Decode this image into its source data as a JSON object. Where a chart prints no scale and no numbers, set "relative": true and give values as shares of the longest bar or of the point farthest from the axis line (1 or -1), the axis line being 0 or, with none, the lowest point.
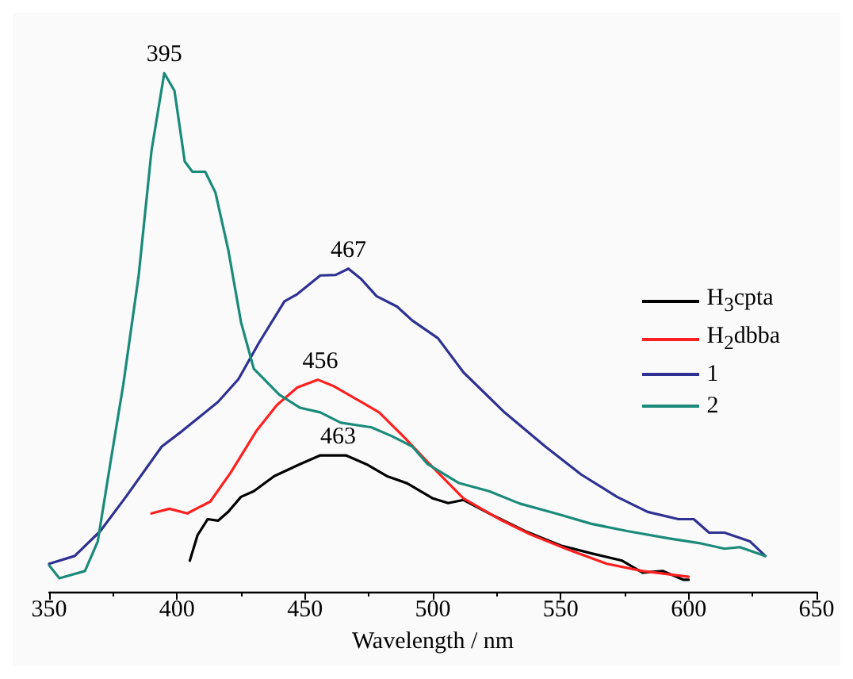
{
  "chart_data": {
    "type": "line",
    "xlabel": "Wavelength / nm",
    "relative": true,
    "xlim": [
      350,
      650
    ],
    "xticks": [
      350,
      400,
      450,
      500,
      550,
      600,
      650
    ],
    "legend": "right",
    "grid": false,
    "tick_labels": "x",
    "marker": "none",
    "line_style": "solid",
    "annotations": [
      {
        "text": "395",
        "x": 395,
        "y": 1.0
      },
      {
        "text": "467",
        "x": 467,
        "y": 0.623
      },
      {
        "text": "456",
        "x": 456,
        "y": 0.409
      },
      {
        "text": "463",
        "x": 463,
        "y": 0.263
      }
    ],
    "series": [
      {
        "name": "H$_{3}$cpta",
        "color": "#000000",
        "x": [
          405,
          408,
          412,
          416,
          420,
          425,
          430,
          438,
          448,
          456,
          466,
          474,
          482,
          490,
          500,
          506,
          512,
          524,
          536,
          550,
          562,
          574,
          582,
          590,
          598,
          600
        ],
        "values": [
          0.06,
          0.109,
          0.14,
          0.137,
          0.154,
          0.183,
          0.194,
          0.223,
          0.246,
          0.263,
          0.263,
          0.246,
          0.223,
          0.209,
          0.18,
          0.171,
          0.177,
          0.146,
          0.117,
          0.089,
          0.074,
          0.06,
          0.037,
          0.04,
          0.023,
          0.023
        ]
      },
      {
        "name": "H$_{2}$dbba",
        "color": "#ff2020",
        "x": [
          390,
          397,
          404,
          413,
          421,
          431,
          439,
          447,
          455,
          461,
          471,
          479,
          489,
          498,
          512,
          526,
          538,
          552,
          568,
          582,
          600
        ],
        "values": [
          0.151,
          0.16,
          0.151,
          0.174,
          0.23,
          0.31,
          0.36,
          0.394,
          0.409,
          0.397,
          0.369,
          0.346,
          0.297,
          0.25,
          0.18,
          0.14,
          0.111,
          0.083,
          0.054,
          0.04,
          0.029
        ]
      },
      {
        "name": "1",
        "color": "#2e3192",
        "x": [
          350,
          360,
          370,
          380,
          394,
          402,
          416,
          424,
          432,
          442,
          447,
          456,
          462,
          467,
          472,
          478,
          486,
          492,
          502,
          512,
          528,
          544,
          558,
          572,
          584,
          596,
          602,
          608,
          614,
          624,
          630
        ],
        "values": [
          0.054,
          0.069,
          0.117,
          0.183,
          0.28,
          0.31,
          0.366,
          0.41,
          0.48,
          0.56,
          0.574,
          0.61,
          0.611,
          0.623,
          0.603,
          0.57,
          0.55,
          0.523,
          0.489,
          0.423,
          0.346,
          0.28,
          0.226,
          0.183,
          0.154,
          0.14,
          0.14,
          0.114,
          0.114,
          0.097,
          0.069
        ]
      },
      {
        "name": "2",
        "color": "#1a8a7a",
        "x": [
          350,
          354,
          364,
          369,
          374,
          379,
          385,
          390,
          395,
          399,
          403,
          406,
          411,
          415,
          420,
          425,
          430,
          440,
          448,
          456,
          464,
          476,
          484,
          492,
          498,
          510,
          522,
          534,
          548,
          562,
          576,
          592,
          604,
          614,
          620,
          630
        ],
        "values": [
          0.051,
          0.026,
          0.04,
          0.097,
          0.25,
          0.4,
          0.61,
          0.85,
          1.0,
          0.966,
          0.83,
          0.81,
          0.81,
          0.77,
          0.66,
          0.52,
          0.43,
          0.38,
          0.355,
          0.346,
          0.326,
          0.317,
          0.3,
          0.28,
          0.246,
          0.21,
          0.194,
          0.17,
          0.151,
          0.131,
          0.117,
          0.103,
          0.094,
          0.083,
          0.086,
          0.069
        ]
      }
    ]
  }
}
